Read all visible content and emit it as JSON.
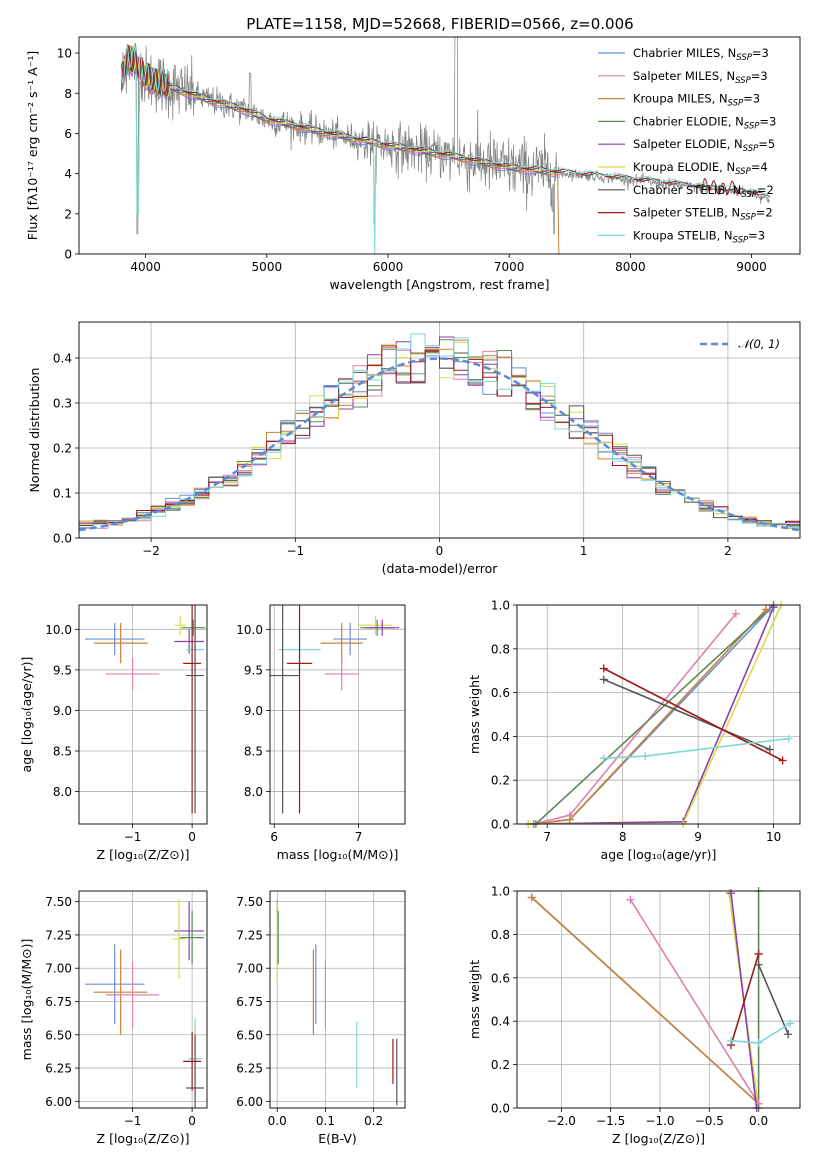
{
  "title": "PLATE=1158, MJD=52668, FIBERID=0566, z=0.006",
  "colors": {
    "chabrier_miles": "#6a8fd9",
    "salpeter_miles": "#e07fb0",
    "kroupa_miles": "#c8823a",
    "chabrier_elodie": "#5a8a5a",
    "salpeter_elodie": "#8c3fa8",
    "kroupa_elodie": "#d8dc4a",
    "chabrier_stelib": "#555555",
    "salpeter_stelib": "#a01818",
    "kroupa_stelib": "#7fd8d8",
    "data": "#808080",
    "normal": "#5b8bd6"
  },
  "chart_data": [
    {
      "id": "spectrum",
      "type": "line",
      "title": "PLATE=1158, MJD=52668, FIBERID=0566, z=0.006",
      "xlabel": "wavelength [Angstrom, rest frame]",
      "ylabel": "Flux [fλ10⁻¹⁷ erg cm⁻² s⁻¹ A⁻¹]",
      "xlim": [
        3450,
        9400
      ],
      "ylim": [
        0,
        10.8
      ],
      "xticks": [
        4000,
        5000,
        6000,
        7000,
        8000,
        9000
      ],
      "yticks": [
        0,
        2,
        4,
        6,
        8,
        10
      ],
      "legend_position": "top-right",
      "legend": [
        {
          "text": "Chabrier MILES, N",
          "sub": "SSP",
          "tail": "=3",
          "color": "chabrier_miles"
        },
        {
          "text": "Salpeter MILES, N",
          "sub": "SSP",
          "tail": "=3",
          "color": "salpeter_miles"
        },
        {
          "text": "Kroupa MILES, N",
          "sub": "SSP",
          "tail": "=3",
          "color": "kroupa_miles"
        },
        {
          "text": "Chabrier ELODIE, N",
          "sub": "SSP",
          "tail": "=3",
          "color": "chabrier_elodie"
        },
        {
          "text": "Salpeter ELODIE, N",
          "sub": "SSP",
          "tail": "=5",
          "color": "salpeter_elodie"
        },
        {
          "text": "Kroupa ELODIE, N",
          "sub": "SSP",
          "tail": "=4",
          "color": "kroupa_elodie"
        },
        {
          "text": "Chabrier STELIB, N",
          "sub": "SSP",
          "tail": "=2",
          "color": "chabrier_stelib"
        },
        {
          "text": "Salpeter STELIB, N",
          "sub": "SSP",
          "tail": "=2",
          "color": "salpeter_stelib"
        },
        {
          "text": "Kroupa STELIB, N",
          "sub": "SSP",
          "tail": "=3",
          "color": "kroupa_stelib"
        }
      ],
      "model_continuum": [
        [
          3800,
          8.7
        ],
        [
          3850,
          9.8
        ],
        [
          3900,
          9.6
        ],
        [
          4000,
          8.8
        ],
        [
          4200,
          8.3
        ],
        [
          4500,
          7.7
        ],
        [
          4800,
          7.2
        ],
        [
          5000,
          6.7
        ],
        [
          5500,
          6.0
        ],
        [
          6000,
          5.4
        ],
        [
          6500,
          4.9
        ],
        [
          7000,
          4.3
        ],
        [
          7400,
          4.05
        ],
        [
          8000,
          3.7
        ],
        [
          8500,
          3.35
        ],
        [
          9000,
          3.05
        ],
        [
          9150,
          2.7
        ]
      ]
    },
    {
      "id": "residual_histogram",
      "type": "line",
      "xlabel": "(data-model)/error",
      "ylabel": "Normed distribution",
      "xlim": [
        -2.5,
        2.5
      ],
      "ylim": [
        0,
        0.48
      ],
      "xticks": [
        -2,
        -1,
        0,
        1,
        2
      ],
      "yticks": [
        0.0,
        0.1,
        0.2,
        0.3,
        0.4
      ],
      "legend_position": "top-right",
      "legend": [
        {
          "text": "𝒩(0, 1)",
          "color": "normal",
          "style": "dashed"
        }
      ],
      "bin_width": 0.1
    },
    {
      "id": "age_vs_Z",
      "type": "scatter",
      "xlabel": "Z [log₁₀(Z/Z⊙)]",
      "ylabel": "age  [log₁₀(age/yr)]",
      "xlim": [
        -1.9,
        0.25
      ],
      "ylim": [
        7.6,
        10.3
      ],
      "xticks": [
        -1,
        0
      ],
      "yticks": [
        8.0,
        8.5,
        9.0,
        9.5,
        10.0
      ],
      "points": [
        {
          "m": "chabrier_miles",
          "x": -1.3,
          "y": 9.88,
          "xerr": 0.5,
          "yerr": 0.2
        },
        {
          "m": "kroupa_miles",
          "x": -1.2,
          "y": 9.83,
          "xerr": 0.45,
          "yerr": 0.25
        },
        {
          "m": "salpeter_miles",
          "x": -1.0,
          "y": 9.45,
          "xerr": 0.45,
          "yerr": 0.2
        },
        {
          "m": "kroupa_elodie",
          "x": -0.2,
          "y": 10.05,
          "xerr": 0.1,
          "yerr": 0.12
        },
        {
          "m": "chabrier_elodie",
          "x": 0.02,
          "y": 10.02,
          "xerr": 0.2,
          "yerr": 0.1
        },
        {
          "m": "salpeter_elodie",
          "x": -0.05,
          "y": 9.85,
          "xerr": 0.25,
          "yerr": 0.15
        },
        {
          "m": "kroupa_stelib",
          "x": 0.05,
          "y": 9.75,
          "xerr": 0.15,
          "yerr": 0.3
        },
        {
          "m": "salpeter_stelib",
          "x": 0.0,
          "y": 9.58,
          "xerr": 0.15,
          "yerr": 1.85
        },
        {
          "m": "chabrier_stelib",
          "x": 0.05,
          "y": 9.43,
          "xerr": 0.15,
          "yerr": 1.7
        }
      ]
    },
    {
      "id": "age_vs_mass",
      "type": "scatter",
      "xlabel": "mass [log₁₀(M/M⊙)]",
      "ylabel": "",
      "xlim": [
        5.95,
        7.55
      ],
      "ylim": [
        7.6,
        10.3
      ],
      "xticks": [
        6,
        7
      ],
      "yticks": [
        8.0,
        8.5,
        9.0,
        9.5,
        10.0
      ],
      "points": [
        {
          "m": "chabrier_miles",
          "x": 6.9,
          "y": 9.88,
          "xerr": 0.2,
          "yerr": 0.2
        },
        {
          "m": "kroupa_miles",
          "x": 6.8,
          "y": 9.83,
          "xerr": 0.25,
          "yerr": 0.25
        },
        {
          "m": "salpeter_miles",
          "x": 6.8,
          "y": 9.45,
          "xerr": 0.2,
          "yerr": 0.2
        },
        {
          "m": "kroupa_elodie",
          "x": 7.2,
          "y": 10.05,
          "xerr": 0.2,
          "yerr": 0.12
        },
        {
          "m": "chabrier_elodie",
          "x": 7.22,
          "y": 10.02,
          "xerr": 0.2,
          "yerr": 0.1
        },
        {
          "m": "salpeter_elodie",
          "x": 7.28,
          "y": 10.02,
          "xerr": 0.2,
          "yerr": 0.1
        },
        {
          "m": "kroupa_stelib",
          "x": 6.3,
          "y": 9.75,
          "xerr": 0.25,
          "yerr": 0.3
        },
        {
          "m": "salpeter_stelib",
          "x": 6.3,
          "y": 9.58,
          "xerr": 0.15,
          "yerr": 1.85
        },
        {
          "m": "chabrier_stelib",
          "x": 6.1,
          "y": 9.43,
          "xerr": 0.2,
          "yerr": 1.7
        }
      ]
    },
    {
      "id": "weight_vs_age",
      "type": "line",
      "xlabel": "age  [log₁₀(age/yr)]",
      "ylabel": "mass weight",
      "xlim": [
        6.6,
        10.35
      ],
      "ylim": [
        0,
        1.0
      ],
      "xticks": [
        7,
        8,
        9,
        10
      ],
      "yticks": [
        0.0,
        0.2,
        0.4,
        0.6,
        0.8,
        1.0
      ],
      "series": [
        {
          "m": "chabrier_miles",
          "x": [
            6.82,
            7.3,
            9.95
          ],
          "y": [
            0.0,
            0.02,
            0.98
          ]
        },
        {
          "m": "salpeter_miles",
          "x": [
            6.82,
            7.3,
            9.5
          ],
          "y": [
            0.0,
            0.04,
            0.96
          ]
        },
        {
          "m": "kroupa_miles",
          "x": [
            6.82,
            7.3,
            9.9
          ],
          "y": [
            0.0,
            0.02,
            0.98
          ]
        },
        {
          "m": "chabrier_elodie",
          "x": [
            6.85,
            10.0
          ],
          "y": [
            0.0,
            1.0
          ]
        },
        {
          "m": "salpeter_elodie",
          "x": [
            6.75,
            8.8,
            10.0
          ],
          "y": [
            0.0,
            0.01,
            0.99
          ]
        },
        {
          "m": "kroupa_elodie",
          "x": [
            6.75,
            8.8,
            10.1
          ],
          "y": [
            0.0,
            0.0,
            1.0
          ]
        },
        {
          "m": "chabrier_stelib",
          "x": [
            7.75,
            9.95
          ],
          "y": [
            0.66,
            0.34
          ]
        },
        {
          "m": "salpeter_stelib",
          "x": [
            7.75,
            10.12
          ],
          "y": [
            0.71,
            0.29
          ]
        },
        {
          "m": "kroupa_stelib",
          "x": [
            7.75,
            8.3,
            10.2
          ],
          "y": [
            0.3,
            0.31,
            0.39
          ]
        }
      ]
    },
    {
      "id": "mass_vs_Z",
      "type": "scatter",
      "xlabel": "Z [log₁₀(Z/Z⊙)]",
      "ylabel": "mass [log₁₀(M/M⊙)]",
      "xlim": [
        -1.9,
        0.25
      ],
      "ylim": [
        5.95,
        7.58
      ],
      "xticks": [
        -1,
        0
      ],
      "yticks": [
        6.0,
        6.25,
        6.5,
        6.75,
        7.0,
        7.25,
        7.5
      ],
      "points": [
        {
          "m": "chabrier_miles",
          "x": -1.3,
          "y": 6.88,
          "xerr": 0.5,
          "yerr": 0.3
        },
        {
          "m": "kroupa_miles",
          "x": -1.2,
          "y": 6.82,
          "xerr": 0.45,
          "yerr": 0.32
        },
        {
          "m": "salpeter_miles",
          "x": -1.0,
          "y": 6.8,
          "xerr": 0.45,
          "yerr": 0.25
        },
        {
          "m": "salpeter_elodie",
          "x": -0.05,
          "y": 7.28,
          "xerr": 0.25,
          "yerr": 0.22
        },
        {
          "m": "kroupa_elodie",
          "x": -0.22,
          "y": 7.22,
          "xerr": 0.1,
          "yerr": 0.3
        },
        {
          "m": "chabrier_elodie",
          "x": 0.0,
          "y": 7.23,
          "xerr": 0.2,
          "yerr": 0.2
        },
        {
          "m": "kroupa_stelib",
          "x": 0.05,
          "y": 6.32,
          "xerr": 0.12,
          "yerr": 0.3
        },
        {
          "m": "salpeter_stelib",
          "x": 0.0,
          "y": 6.3,
          "xerr": 0.15,
          "yerr": 0.22
        },
        {
          "m": "chabrier_stelib",
          "x": 0.05,
          "y": 6.1,
          "xerr": 0.15,
          "yerr": 0.4
        }
      ]
    },
    {
      "id": "mass_vs_ebv",
      "type": "scatter",
      "xlabel": "E(B-V)",
      "ylabel": "",
      "xlim": [
        -0.015,
        0.265
      ],
      "ylim": [
        5.95,
        7.58
      ],
      "xticks": [
        0.0,
        0.1,
        0.2
      ],
      "yticks": [
        6.0,
        6.25,
        6.5,
        6.75,
        7.0,
        7.25,
        7.5
      ],
      "points": [
        {
          "m": "salpeter_elodie",
          "x": 0.0,
          "y": 7.45,
          "xerr": 0,
          "yerr": 0.06
        },
        {
          "m": "kroupa_elodie",
          "x": 0.0,
          "y": 7.2,
          "xerr": 0,
          "yerr": 0.3
        },
        {
          "m": "chabrier_elodie",
          "x": 0.002,
          "y": 7.23,
          "xerr": 0,
          "yerr": 0.2
        },
        {
          "m": "chabrier_miles",
          "x": 0.08,
          "y": 6.88,
          "xerr": 0,
          "yerr": 0.3
        },
        {
          "m": "kroupa_miles",
          "x": 0.075,
          "y": 6.82,
          "xerr": 0,
          "yerr": 0.32
        },
        {
          "m": "salpeter_miles",
          "x": 0.1,
          "y": 6.8,
          "xerr": 0,
          "yerr": 0.25
        },
        {
          "m": "kroupa_stelib",
          "x": 0.165,
          "y": 6.35,
          "xerr": 0,
          "yerr": 0.25
        },
        {
          "m": "salpeter_stelib",
          "x": 0.24,
          "y": 6.3,
          "xerr": 0,
          "yerr": 0.17
        },
        {
          "m": "chabrier_stelib",
          "x": 0.248,
          "y": 6.22,
          "xerr": 0,
          "yerr": 0.25
        }
      ]
    },
    {
      "id": "weight_vs_Z",
      "type": "line",
      "xlabel": "Z [log₁₀(Z/Z⊙)]",
      "ylabel": "mass weight",
      "xlim": [
        -2.45,
        0.42
      ],
      "ylim": [
        0,
        1.0
      ],
      "xticks": [
        -2.0,
        -1.5,
        -1.0,
        -0.5,
        0.0
      ],
      "yticks": [
        0.0,
        0.2,
        0.4,
        0.6,
        0.8,
        1.0
      ],
      "series": [
        {
          "m": "chabrier_miles",
          "x": [
            -2.3,
            0.0
          ],
          "y": [
            0.97,
            0.02
          ]
        },
        {
          "m": "kroupa_miles",
          "x": [
            -2.3,
            0.0
          ],
          "y": [
            0.97,
            0.02
          ]
        },
        {
          "m": "salpeter_miles",
          "x": [
            -1.3,
            0.0
          ],
          "y": [
            0.96,
            0.02
          ]
        },
        {
          "m": "kroupa_elodie",
          "x": [
            -0.3,
            0.0
          ],
          "y": [
            0.99,
            0.0
          ]
        },
        {
          "m": "salpeter_elodie",
          "x": [
            -0.28,
            -0.02
          ],
          "y": [
            0.99,
            0.0
          ]
        },
        {
          "m": "chabrier_elodie",
          "x": [
            0.0,
            0.0
          ],
          "y": [
            1.0,
            0.0
          ]
        },
        {
          "m": "chabrier_stelib",
          "x": [
            0.0,
            0.3
          ],
          "y": [
            0.66,
            0.34
          ]
        },
        {
          "m": "salpeter_stelib",
          "x": [
            -0.28,
            0.0
          ],
          "y": [
            0.29,
            0.71
          ]
        },
        {
          "m": "kroupa_stelib",
          "x": [
            -0.28,
            0.0,
            0.32
          ],
          "y": [
            0.31,
            0.3,
            0.39
          ]
        }
      ]
    }
  ]
}
